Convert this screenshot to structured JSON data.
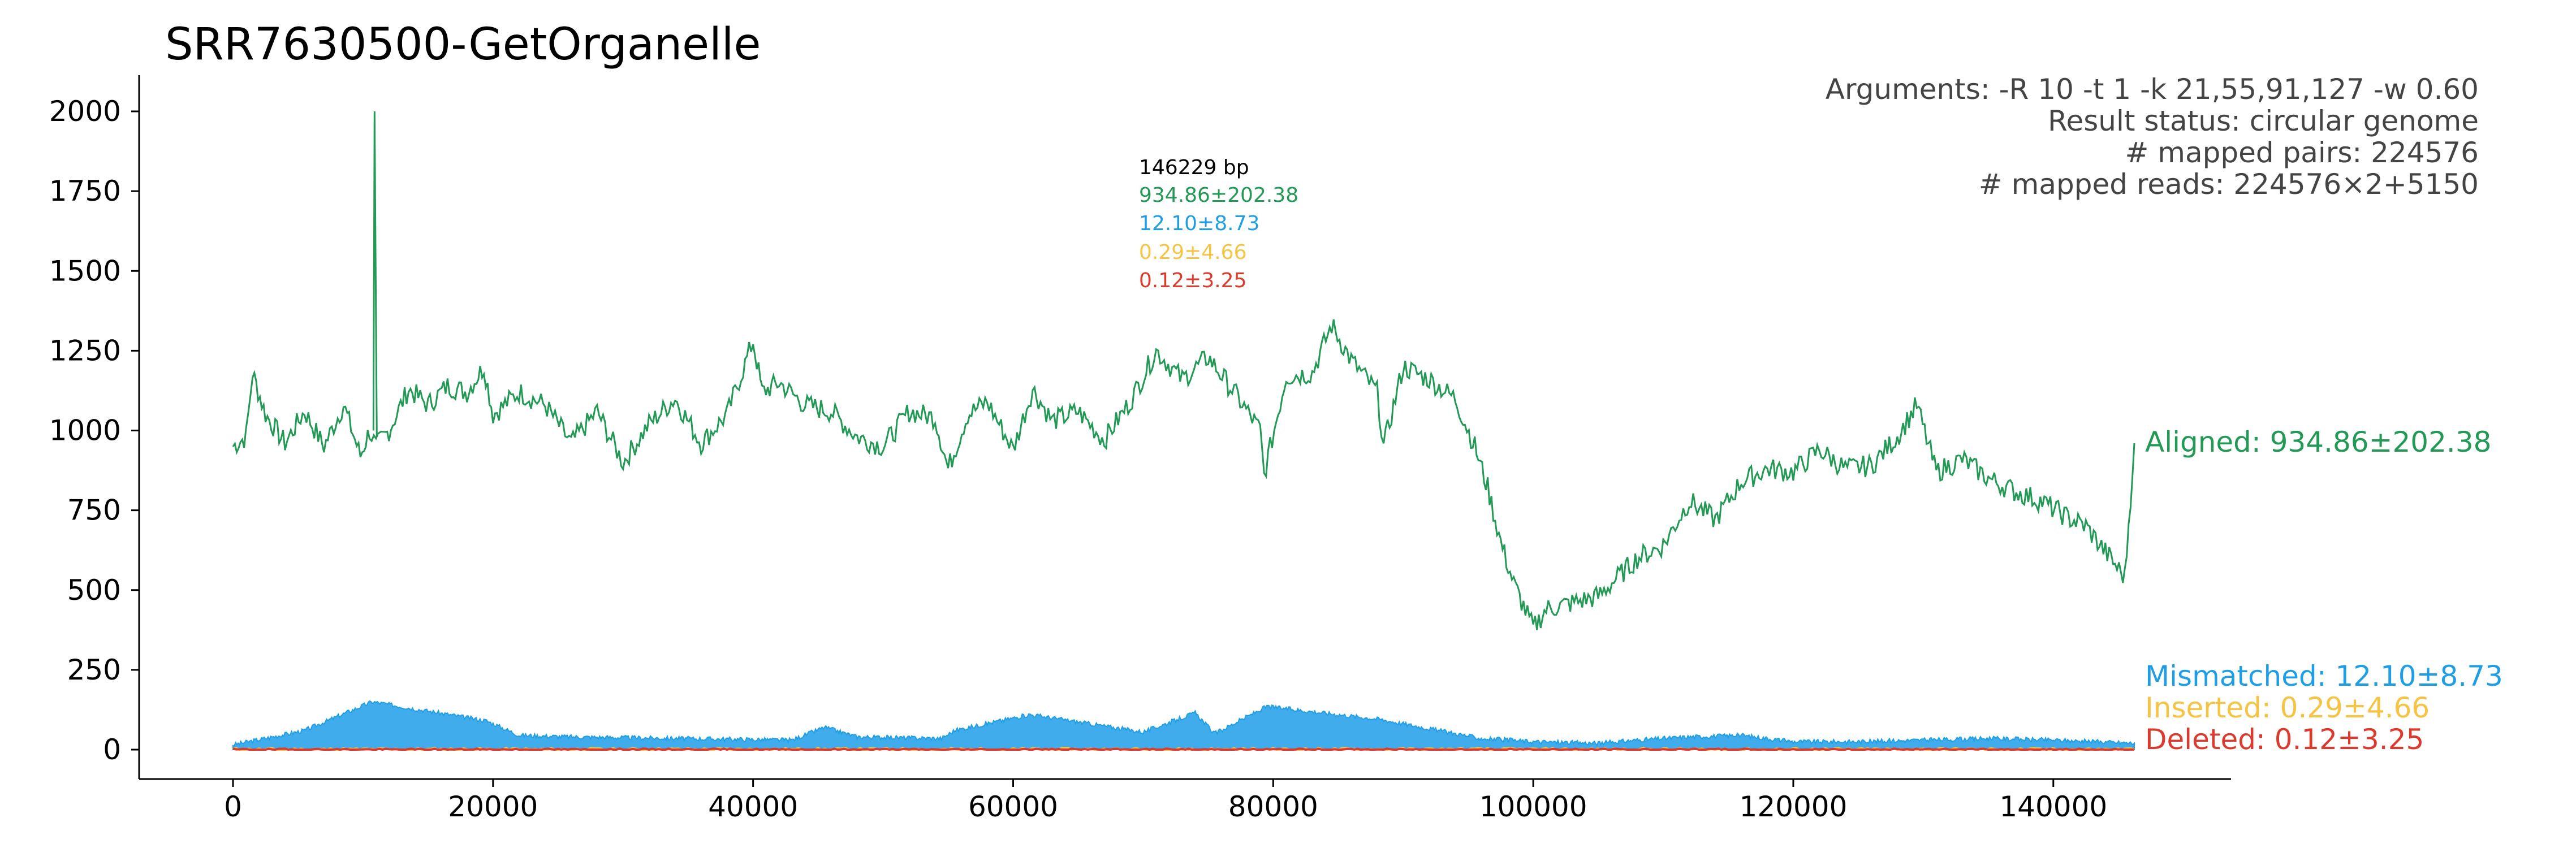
{
  "chart_data": {
    "type": "line",
    "title": "SRR7630500-GetOrganelle",
    "xlabel": "",
    "ylabel": "",
    "xlim": [
      -7300,
      153500
    ],
    "ylim": [
      -100,
      2120
    ],
    "x_ticks": [
      0,
      20000,
      40000,
      60000,
      80000,
      100000,
      120000,
      140000
    ],
    "y_ticks": [
      0,
      250,
      500,
      750,
      1000,
      1250,
      1500,
      1750,
      2000
    ],
    "genome_length_label": "146229 bp",
    "stats": {
      "aligned": "934.86±202.38",
      "mismatched": "12.10±8.73",
      "inserted": "0.29±4.66",
      "deleted": "0.12±3.25"
    },
    "arguments": [
      "Arguments: -R 10 -t 1 -k 21,55,91,127 -w 0.60",
      "Result status: circular genome",
      "# mapped pairs: 224576",
      "# mapped reads: 224576×2+5150"
    ],
    "series": [
      {
        "name": "Aligned",
        "color": "#229954",
        "legend": "Aligned: 934.86±202.38",
        "x": [
          0,
          1000,
          1500,
          2500,
          4000,
          5500,
          7000,
          8500,
          9800,
          10500,
          11000,
          12000,
          13500,
          15000,
          16500,
          18000,
          19300,
          20000,
          22000,
          24000,
          26000,
          28000,
          30000,
          32000,
          34000,
          36000,
          38000,
          40000,
          40700,
          42000,
          44000,
          46000,
          48000,
          50000,
          52000,
          54000,
          55000,
          56500,
          58000,
          60000,
          61500,
          63000,
          65000,
          67000,
          69000,
          71000,
          73000,
          75000,
          77000,
          79000,
          79300,
          81000,
          83000,
          84500,
          86000,
          88000,
          88500,
          90000,
          92000,
          94000,
          95500,
          96500,
          97500,
          98500,
          100000,
          101000,
          103000,
          105000,
          106500,
          108000,
          110000,
          112000,
          114000,
          116000,
          118000,
          120000,
          122000,
          124000,
          126000,
          128000,
          129500,
          131000,
          133000,
          135000,
          137000,
          139000,
          141000,
          142500,
          144000,
          145500,
          146229
        ],
        "y": [
          950,
          980,
          1180,
          1050,
          960,
          1060,
          950,
          1080,
          920,
          1000,
          950,
          1000,
          1130,
          1080,
          1140,
          1120,
          1200,
          1050,
          1120,
          1080,
          960,
          1060,
          900,
          1020,
          1100,
          960,
          1050,
          1280,
          1120,
          1150,
          1080,
          1060,
          980,
          950,
          1060,
          1040,
          880,
          1050,
          1090,
          940,
          1130,
          1030,
          1060,
          970,
          1090,
          1250,
          1160,
          1230,
          1120,
          1000,
          860,
          1170,
          1180,
          1330,
          1220,
          1120,
          950,
          1200,
          1160,
          1100,
          950,
          820,
          650,
          520,
          380,
          440,
          460,
          480,
          540,
          600,
          640,
          780,
          720,
          840,
          880,
          870,
          940,
          880,
          890,
          980,
          1080,
          870,
          910,
          850,
          810,
          780,
          730,
          700,
          620,
          540,
          960
        ]
      },
      {
        "name": "Mismatched",
        "color": "#1f9ee8",
        "legend": "Mismatched: 12.10±8.73",
        "x": [
          0,
          5500,
          10700,
          19500,
          22000,
          26000,
          43000,
          45500,
          48000,
          54500,
          55500,
          61300,
          70000,
          74000,
          75500,
          79500,
          88200,
          96000,
          100000,
          105000,
          108000,
          112000,
          116000,
          120000,
          125000,
          130000,
          135000,
          140000,
          146229
        ],
        "y": [
          15,
          60,
          150,
          90,
          45,
          40,
          30,
          70,
          40,
          35,
          60,
          110,
          55,
          115,
          50,
          135,
          95,
          35,
          25,
          20,
          30,
          40,
          45,
          25,
          25,
          30,
          35,
          30,
          20
        ]
      },
      {
        "name": "Inserted",
        "color": "#f6c342",
        "legend": "Inserted: 0.29±4.66",
        "x": [
          0,
          146229
        ],
        "y": [
          0.29,
          0.29
        ]
      },
      {
        "name": "Deleted",
        "color": "#dc3a2c",
        "legend": "Deleted: 0.12±3.25",
        "x": [
          0,
          146229
        ],
        "y": [
          0.12,
          0.12
        ]
      }
    ]
  }
}
